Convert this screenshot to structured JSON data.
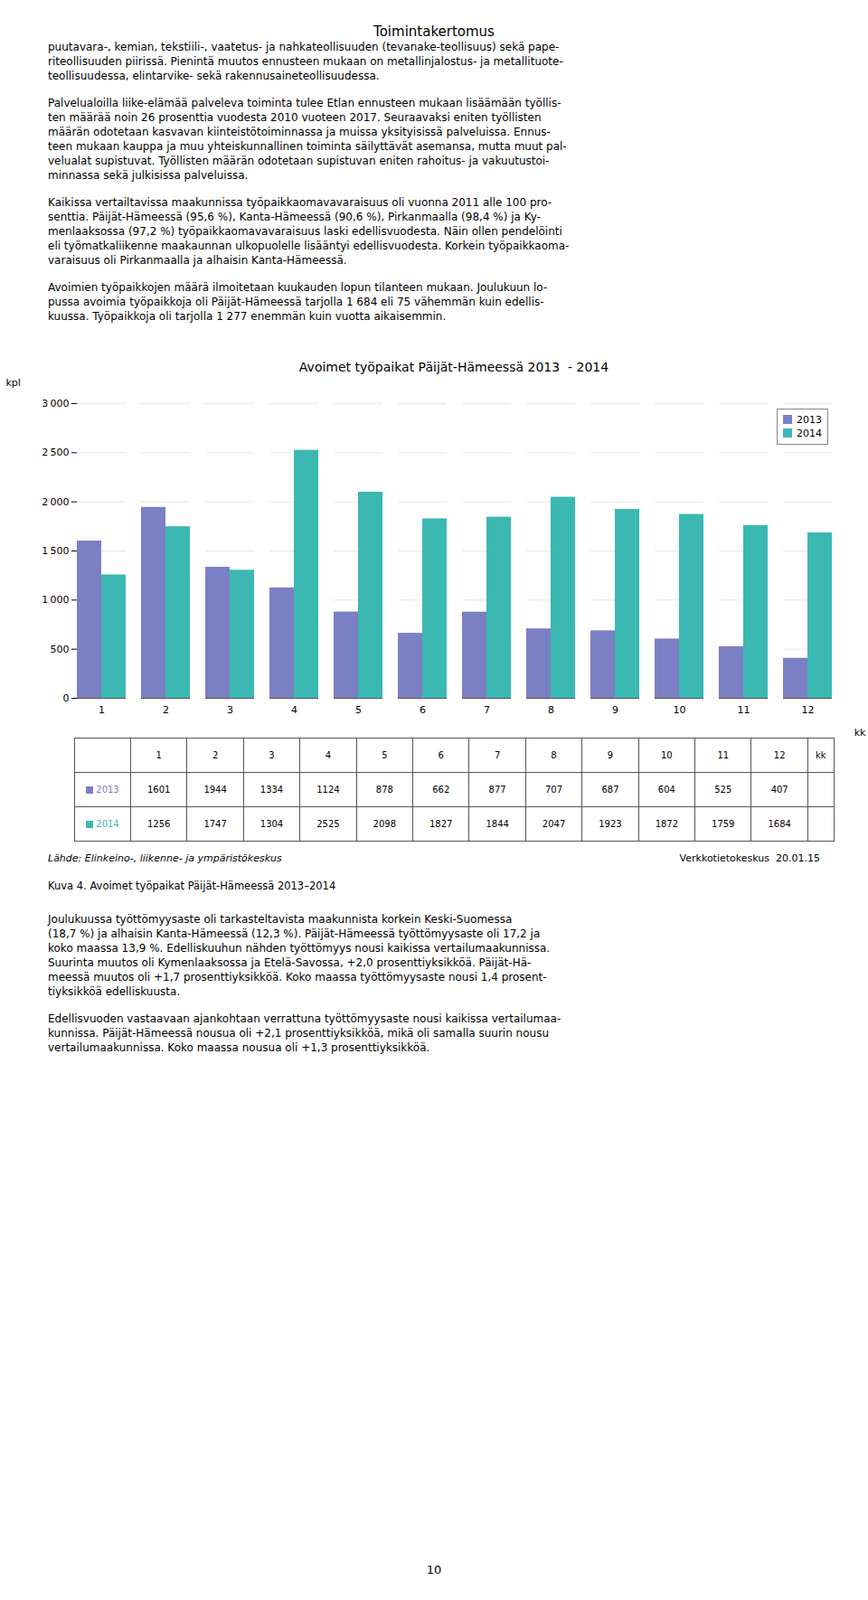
{
  "page_title": "Toimintakertomus",
  "text_above": [
    "puutavara-, kemian, tekstiili-, vaatetus- ja nahkateollisuuden (tevanake-teollisuus) sekä pape-\nriteollisuuden piirissä. Pienintä muutos ennusteen mukaan on metallinjalostus- ja metallituote-\nteollisuudessa, elintarvike- sekä rakennusaineteollisuudessa.",
    "Palvelualoilla liike-elämää palveleva toiminta tulee Etlan ennusteen mukaan lisäämään työllis-\nten määrää noin 26 prosenttia vuodesta 2010 vuoteen 2017. Seuraavaksi eniten työllisten\nmäärän odotetaan kasvavan kiinteistötoiminnassa ja muissa yksityisissä palveluissa. Ennus-\nteen mukaan kauppa ja muu yhteiskunnallinen toiminta säilyttävät asemansa, mutta muut pal-\nvelualat supistuvat. Työllisten määrän odotetaan supistuvan eniten rahoitus- ja vakuutustoi-\nminnassa sekä julkisissa palveluissa.",
    "Kaikissa vertailtavissa maakunnissa työpaikkaomavavaraisuus oli vuonna 2011 alle 100 pro-\nsenttia. Päijät-Hämeessä (95,6 %), Kanta-Hämeessä (90,6 %), Pirkanmaalla (98,4 %) ja Ky-\nmenlaaksossa (97,2 %) työpaikkaomavavaraisuus laski edellisvuodesta. Näin ollen pendelöinti\neli työmatkaliikenne maakaunnan ulkopuolelle lisääntyi edellisvuodesta. Korkein työpaikkaoma-\nvaraisuus oli Pirkanmaalla ja alhaisin Kanta-Hämeessä.",
    "Avoimien työpaikkojen määrä ilmoitetaan kuukauden lopun tilanteen mukaan. Joulukuun lo-\npussa avoimia työpaikkoja oli Päijät-Hämeessä tarjolla 1 684 eli 75 vähemmän kuin edellis-\nkuussa. Työpaikkoja oli tarjolla 1 277 enemmän kuin vuotta aikaisemmin."
  ],
  "chart_data": {
    "type": "bar",
    "title": "Avoimet työpaikat Päijät-Hämeessä 2013  - 2014",
    "xlabel": "kk",
    "ylabel": "kpl",
    "categories": [
      "1",
      "2",
      "3",
      "4",
      "5",
      "6",
      "7",
      "8",
      "9",
      "10",
      "11",
      "12"
    ],
    "series": [
      {
        "name": "2013",
        "color": "#7B7FC4",
        "values": [
          1601,
          1944,
          1334,
          1124,
          878,
          662,
          877,
          707,
          687,
          604,
          525,
          407
        ]
      },
      {
        "name": "2014",
        "color": "#3CB8B2",
        "values": [
          1256,
          1747,
          1304,
          2525,
          2098,
          1827,
          1844,
          2047,
          1923,
          1872,
          1759,
          1684
        ]
      }
    ],
    "ylim": [
      0,
      3000
    ],
    "yticks": [
      0,
      500,
      {
        "value": 1000,
        "label": "1 000"
      },
      {
        "value": 1500,
        "label": "1 500"
      },
      {
        "value": 2000,
        "label": "2 000"
      },
      {
        "value": 2500,
        "label": "2 500"
      },
      {
        "value": 3000,
        "label": "3 000"
      }
    ],
    "grid": true,
    "legend": "upper right"
  },
  "source_left": "Lähde: Elinkeino-, liikenne- ja ympäristökeskus",
  "source_right": "Verkkotietokeskus  20.01.15",
  "caption": "Kuva 4. Avoimet työpaikat Päijät-Hämeessä 2013–2014",
  "text_below": [
    "Joulukuussa työttömyysaste oli tarkasteltavista maakunnista korkein Keski-Suomessa\n(18,7 %) ja alhaisin Kanta-Hämeessä (12,3 %). Päijät-Hämeessä työttömyysaste oli 17,2 ja\nkoko maassa 13,9 %. Edelliskuuhun nähden työttömyys nousi kaikissa vertailumaakunnissa.\nSuurinta muutos oli Kymenlaaksossa ja Etelä-Savossa, +2,0 prosenttiyksikköä. Päijät-Hä-\nmeessä muutos oli +1,7 prosenttiyksikköä. Koko maassa työttömyysaste nousi 1,4 prosent-\ntiyksikköä edelliskuusta.",
    "Edellisvuoden vastaavaan ajankohtaan verrattuna työttömyysaste nousi kaikissa vertailumaa-\nkunnissa. Päijät-Hämeessä nousua oli +2,1 prosenttiyksikköä, mikä oli samalla suurin nousu\nvertailumaakunnissa. Koko maassa nousua oli +1,3 prosenttiyksikköä."
  ],
  "page_number": "10"
}
